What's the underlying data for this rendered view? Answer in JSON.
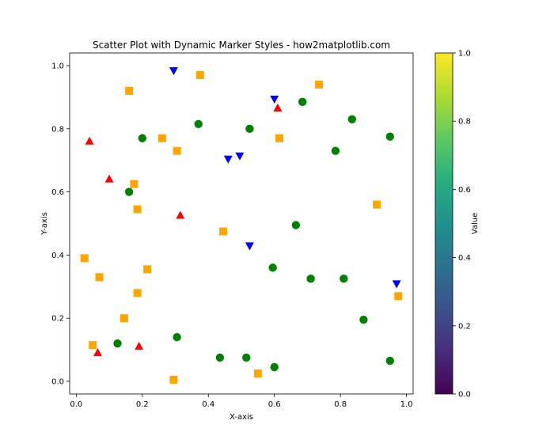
{
  "chart_data": {
    "type": "scatter",
    "title": "Scatter Plot with Dynamic Marker Styles - how2matplotlib.com",
    "xlabel": "X-axis",
    "ylabel": "Y-axis",
    "xlim": [
      -0.02,
      1.02
    ],
    "ylim": [
      -0.04,
      1.04
    ],
    "grid": false,
    "xticks": [
      "0.0",
      "0.2",
      "0.4",
      "0.6",
      "0.8",
      "1.0"
    ],
    "yticks": [
      "0.0",
      "0.2",
      "0.4",
      "0.6",
      "0.8",
      "1.0"
    ],
    "series": [
      {
        "marker": "circle",
        "color": "#008000",
        "points": [
          [
            0.37,
            0.815
          ],
          [
            0.2,
            0.77
          ],
          [
            0.525,
            0.8
          ],
          [
            0.685,
            0.885
          ],
          [
            0.835,
            0.83
          ],
          [
            0.785,
            0.73
          ],
          [
            0.95,
            0.775
          ],
          [
            0.16,
            0.6
          ],
          [
            0.665,
            0.495
          ],
          [
            0.595,
            0.36
          ],
          [
            0.71,
            0.325
          ],
          [
            0.81,
            0.325
          ],
          [
            0.87,
            0.195
          ],
          [
            0.125,
            0.12
          ],
          [
            0.305,
            0.14
          ],
          [
            0.435,
            0.075
          ],
          [
            0.515,
            0.075
          ],
          [
            0.6,
            0.045
          ],
          [
            0.95,
            0.065
          ]
        ]
      },
      {
        "marker": "square",
        "color": "#FFA500",
        "points": [
          [
            0.16,
            0.92
          ],
          [
            0.375,
            0.97
          ],
          [
            0.735,
            0.94
          ],
          [
            0.26,
            0.77
          ],
          [
            0.305,
            0.73
          ],
          [
            0.615,
            0.77
          ],
          [
            0.175,
            0.625
          ],
          [
            0.185,
            0.545
          ],
          [
            0.91,
            0.56
          ],
          [
            0.445,
            0.475
          ],
          [
            0.025,
            0.39
          ],
          [
            0.07,
            0.33
          ],
          [
            0.215,
            0.355
          ],
          [
            0.185,
            0.28
          ],
          [
            0.975,
            0.27
          ],
          [
            0.145,
            0.2
          ],
          [
            0.05,
            0.115
          ],
          [
            0.55,
            0.025
          ],
          [
            0.295,
            0.005
          ]
        ]
      },
      {
        "marker": "triangle-up",
        "color": "#FF0000",
        "points": [
          [
            0.04,
            0.76
          ],
          [
            0.1,
            0.64
          ],
          [
            0.315,
            0.525
          ],
          [
            0.61,
            0.865
          ],
          [
            0.065,
            0.09
          ],
          [
            0.19,
            0.11
          ]
        ]
      },
      {
        "marker": "triangle-down",
        "color": "#0000FF",
        "points": [
          [
            0.295,
            0.985
          ],
          [
            0.6,
            0.895
          ],
          [
            0.46,
            0.705
          ],
          [
            0.495,
            0.715
          ],
          [
            0.525,
            0.43
          ],
          [
            0.97,
            0.31
          ]
        ]
      }
    ],
    "colorbar": {
      "label": "Value",
      "colormap": "viridis",
      "range": [
        0.0,
        1.0
      ],
      "ticks": [
        "0.0",
        "0.2",
        "0.4",
        "0.6",
        "0.8",
        "1.0"
      ]
    }
  }
}
